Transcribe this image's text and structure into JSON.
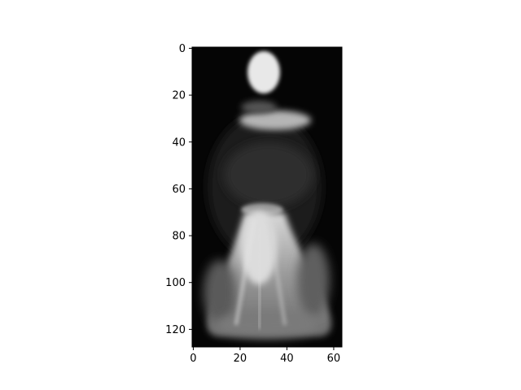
{
  "image": {
    "description_type": "grayscale image displayed with matplotlib imshow",
    "colormap": "gray",
    "background": "#ffffff"
  },
  "chart_data": {
    "type": "heatmap",
    "title": "",
    "xlabel": "",
    "ylabel": "",
    "xlim": [
      -0.5,
      63.5
    ],
    "ylim": [
      127.5,
      -0.5
    ],
    "xticks": [
      0,
      20,
      40,
      60
    ],
    "xtick_labels": [
      "0",
      "20",
      "40",
      "60"
    ],
    "yticks": [
      0,
      20,
      40,
      60,
      80,
      100,
      120
    ],
    "ytick_labels": [
      "0",
      "20",
      "40",
      "60",
      "80",
      "100",
      "120"
    ],
    "grid": false,
    "image_shape": [
      128,
      64
    ]
  }
}
